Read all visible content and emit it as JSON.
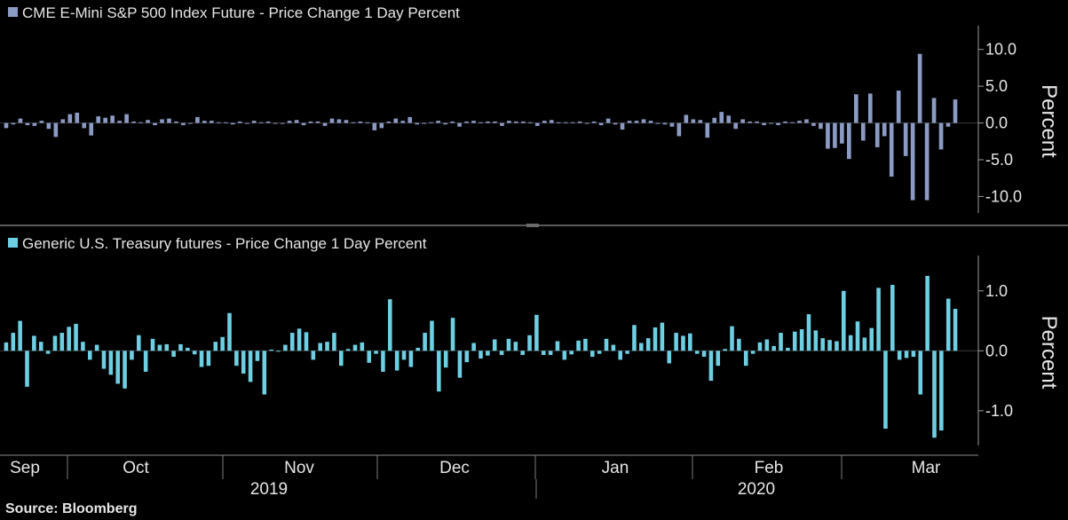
{
  "chart_data": [
    {
      "type": "bar",
      "title": "CME E-Mini S&P 500 Index Future - Price Change 1 Day Percent",
      "ylabel": "Percent",
      "ylim": [
        -12,
        12.5
      ],
      "yticks": [
        "10.0",
        "5.0",
        "0.0",
        "-5.0",
        "-10.0"
      ],
      "ytick_values": [
        10,
        5,
        0,
        -5,
        -10
      ],
      "color": "#8c9bc4",
      "series": [
        {
          "name": "CME E-Mini S&P 500 Index Future - Price Change 1 Day Percent",
          "values": [
            -0.7,
            -0.2,
            0.6,
            -0.3,
            -0.4,
            0.3,
            -0.8,
            -1.9,
            0.5,
            1.2,
            1.4,
            -0.7,
            -1.7,
            0.9,
            0.7,
            1.0,
            0.3,
            1.2,
            0.2,
            0.1,
            0.4,
            -0.3,
            0.5,
            0.6,
            0.2,
            -0.3,
            -0.1,
            0.8,
            0.3,
            0.3,
            0.1,
            0.1,
            -0.2,
            0.2,
            -0.1,
            0.3,
            0.1,
            0.2,
            -0.1,
            0.0,
            0.3,
            0.4,
            -0.3,
            0.2,
            0.2,
            -0.4,
            0.6,
            0.5,
            0.4,
            0.1,
            0.2,
            0.1,
            -1.0,
            -0.7,
            0.2,
            0.6,
            0.3,
            0.8,
            -0.2,
            -0.1,
            0.1,
            0.3,
            -0.2,
            0.2,
            -0.5,
            0.2,
            0.3,
            0.1,
            0.2,
            0.2,
            -0.4,
            0.3,
            0.2,
            0.2,
            0.1,
            -0.4,
            0.3,
            0.4,
            0.1,
            0.1,
            0.1,
            0.2,
            -0.1,
            0.2,
            -0.3,
            0.6,
            -0.2,
            -0.9,
            0.3,
            0.3,
            0.5,
            0.3,
            -0.1,
            -0.2,
            -0.5,
            -1.8,
            1.1,
            0.5,
            0.4,
            -2.0,
            0.7,
            1.5,
            1.0,
            -0.8,
            0.5,
            0.2,
            0.2,
            -0.3,
            -0.1,
            -0.3,
            0.2,
            0.1,
            0.3,
            0.5,
            -0.4,
            -0.8,
            -3.5,
            -3.4,
            -2.8,
            -4.9,
            3.9,
            -2.4,
            4.0,
            -3.3,
            -1.8,
            -7.3,
            4.4,
            -4.5,
            -10.5,
            9.4,
            -10.5,
            3.4,
            -3.6,
            -0.5,
            3.2
          ]
        }
      ]
    },
    {
      "type": "bar",
      "title": "Generic U.S. Treasury futures - Price Change 1 Day Percent",
      "ylabel": "Percent",
      "ylim": [
        -1.55,
        1.5
      ],
      "yticks": [
        "1.0",
        "0.0",
        "-1.0"
      ],
      "ytick_values": [
        1,
        0,
        -1
      ],
      "color": "#6ecfe3",
      "series": [
        {
          "name": "Generic U.S. Treasury futures - Price Change 1 Day Percent",
          "values": [
            0.14,
            0.3,
            0.5,
            -0.6,
            0.25,
            0.15,
            -0.05,
            0.25,
            0.3,
            0.4,
            0.45,
            0.15,
            -0.15,
            0.1,
            -0.3,
            -0.4,
            -0.55,
            -0.63,
            -0.15,
            0.26,
            -0.35,
            0.2,
            0.1,
            0.11,
            -0.1,
            0.11,
            0.05,
            -0.06,
            -0.27,
            -0.25,
            0.15,
            0.23,
            0.63,
            -0.25,
            -0.38,
            -0.52,
            -0.17,
            -0.73,
            0.02,
            0.0,
            0.1,
            0.3,
            0.37,
            0.31,
            -0.15,
            0.13,
            0.15,
            0.3,
            -0.25,
            0.03,
            0.1,
            0.14,
            -0.2,
            -0.05,
            -0.35,
            0.86,
            -0.33,
            -0.15,
            -0.27,
            0.05,
            0.3,
            0.5,
            -0.68,
            -0.28,
            0.55,
            -0.45,
            -0.19,
            0.13,
            -0.13,
            -0.08,
            0.19,
            -0.07,
            0.2,
            0.15,
            -0.07,
            0.26,
            0.6,
            -0.07,
            -0.07,
            0.16,
            -0.15,
            -0.06,
            0.17,
            0.2,
            -0.1,
            -0.05,
            0.2,
            0.1,
            -0.15,
            -0.05,
            0.43,
            0.13,
            0.21,
            0.39,
            0.47,
            -0.21,
            0.3,
            0.25,
            0.29,
            -0.05,
            -0.1,
            -0.5,
            -0.25,
            0.03,
            0.41,
            0.2,
            -0.25,
            -0.05,
            0.14,
            0.19,
            0.08,
            0.3,
            0.05,
            0.32,
            0.36,
            0.61,
            0.34,
            0.21,
            0.18,
            0.16,
            1.0,
            0.26,
            0.49,
            0.22,
            0.38,
            1.05,
            -1.3,
            1.1,
            -0.15,
            -0.12,
            -0.1,
            -0.73,
            1.25,
            -1.45,
            -1.33,
            0.87,
            0.7
          ]
        }
      ]
    }
  ],
  "x_axis": {
    "months": [
      "Sep",
      "Oct",
      "Nov",
      "Dec",
      "Jan",
      "Feb",
      "Mar"
    ],
    "years": [
      "2019",
      "2020"
    ]
  },
  "source": "Source:  Bloomberg"
}
